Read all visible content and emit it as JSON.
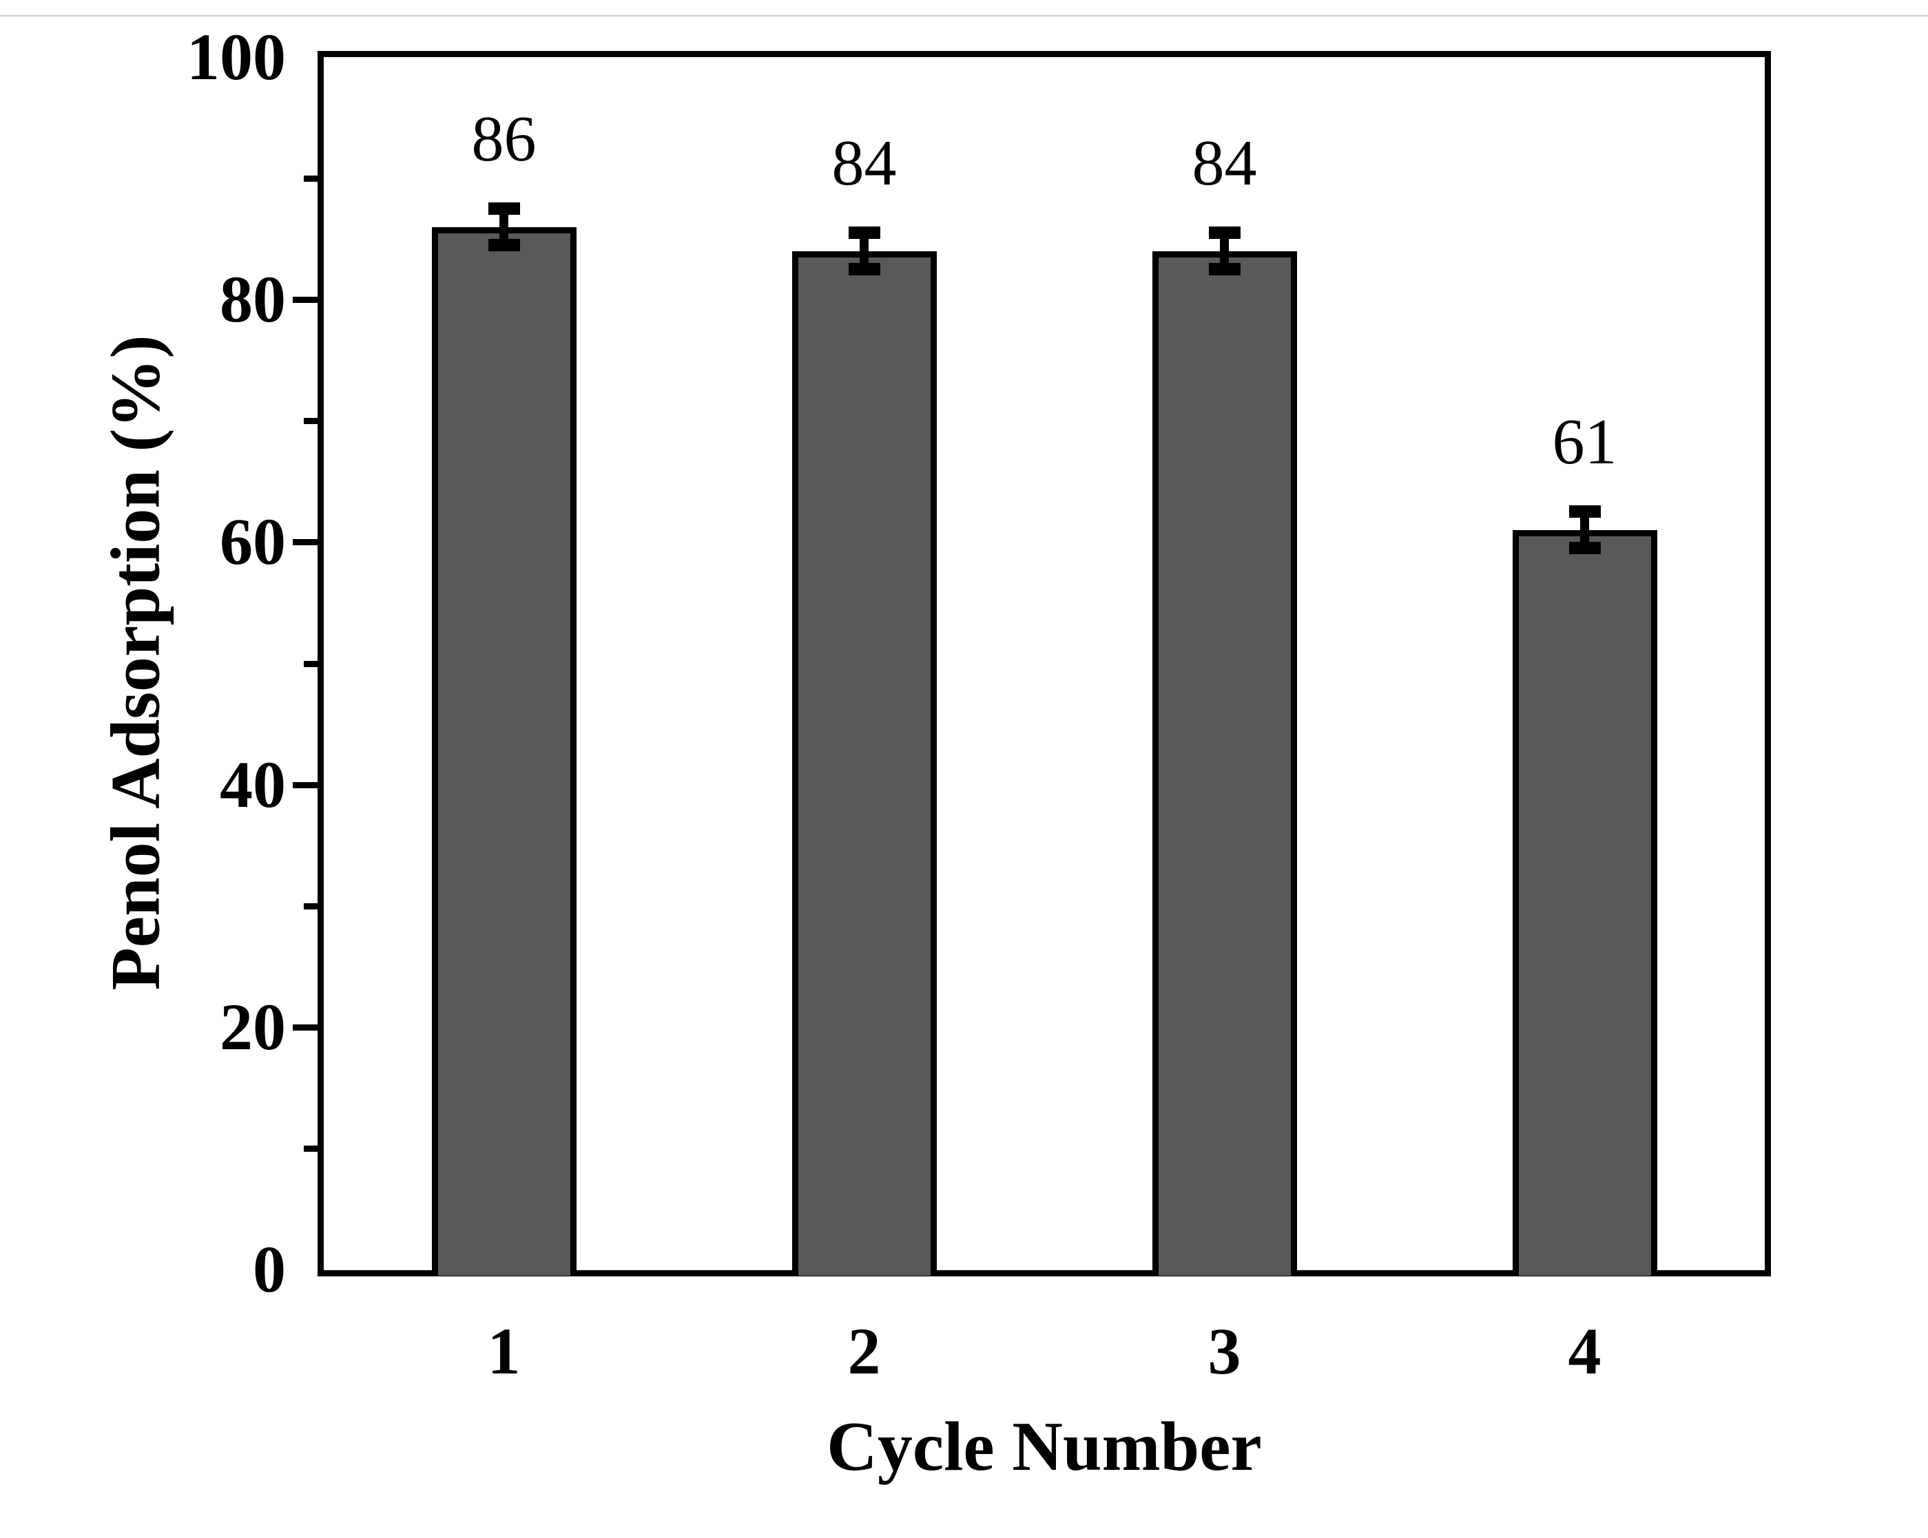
{
  "figure": {
    "background": "#ffffff",
    "top_border_color": "#cfcfcf"
  },
  "chart_data": {
    "type": "bar",
    "title": "",
    "categories": [
      "1",
      "2",
      "3",
      "4"
    ],
    "values": [
      86,
      84,
      84,
      61
    ],
    "bar_labels": [
      "86",
      "84",
      "84",
      "61"
    ],
    "error_bars": {
      "show": true,
      "plus_minus": 1.5
    },
    "xlabel": "Cycle Number",
    "ylabel": "Penol Adsorption (%)",
    "ylim": [
      0,
      100
    ],
    "yticks_major": [
      0,
      20,
      40,
      60,
      80,
      100
    ],
    "yticks_minor": [
      10,
      30,
      50,
      70,
      90
    ],
    "ytick_labels": [
      "0",
      "20",
      "40",
      "60",
      "80",
      "100"
    ],
    "grid": false,
    "legend_position": "none",
    "bar_color": "#595959",
    "bar_border_color": "#000000",
    "axis_color": "#000000",
    "text_color": "#000000"
  }
}
